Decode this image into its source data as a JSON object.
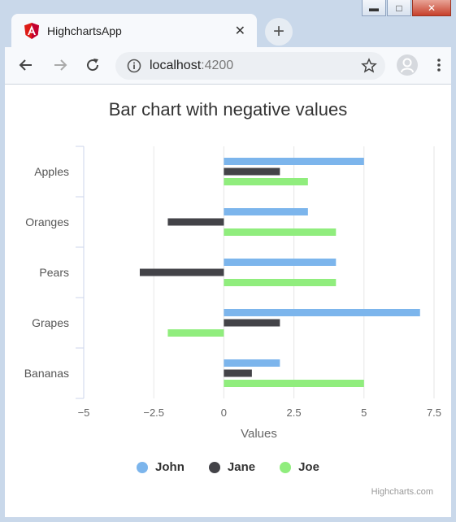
{
  "browser": {
    "tab_title": "HighchartsApp",
    "tab_close": "✕",
    "new_tab": "+",
    "url_host": "localhost",
    "url_port": ":4200"
  },
  "chart_data": {
    "type": "bar",
    "title": "Bar chart with negative values",
    "xlabel": "",
    "ylabel": "Values",
    "categories": [
      "Apples",
      "Oranges",
      "Pears",
      "Grapes",
      "Bananas"
    ],
    "series": [
      {
        "name": "John",
        "color": "#7cb5ec",
        "values": [
          5,
          3,
          4,
          7,
          2
        ]
      },
      {
        "name": "Jane",
        "color": "#434348",
        "values": [
          2,
          -2,
          -3,
          2,
          1
        ]
      },
      {
        "name": "Joe",
        "color": "#90ed7d",
        "values": [
          3,
          4,
          4,
          -2,
          5
        ]
      }
    ],
    "xlim": [
      -5,
      7.5
    ],
    "ticks": [
      "−5",
      "−2.5",
      "0",
      "2.5",
      "5",
      "7.5"
    ],
    "tick_values": [
      -5,
      -2.5,
      0,
      2.5,
      5,
      7.5
    ],
    "grid": true,
    "legend_position": "bottom-center",
    "credits": "Highcharts.com"
  }
}
